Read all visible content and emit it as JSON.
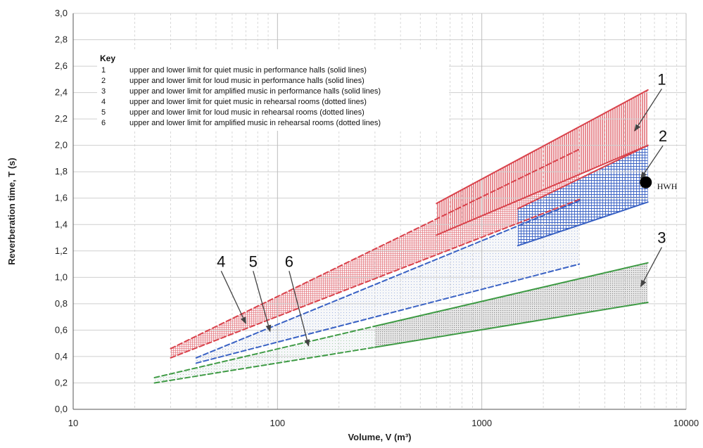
{
  "chart_data": {
    "type": "line",
    "title": "",
    "xlabel": "Volume, V (m³)",
    "ylabel": "Reverberation time, T (s)",
    "x_scale": "log",
    "xlim": [
      10,
      10000
    ],
    "ylim": [
      0,
      3.0
    ],
    "grid": true,
    "x_ticks": [
      {
        "value": 10,
        "label": "10"
      },
      {
        "value": 100,
        "label": "100"
      },
      {
        "value": 1000,
        "label": "1000"
      },
      {
        "value": 10000,
        "label": "10000"
      }
    ],
    "y_ticks": [
      {
        "value": 0.0,
        "label": "0,0"
      },
      {
        "value": 0.2,
        "label": "0,2"
      },
      {
        "value": 0.4,
        "label": "0,4"
      },
      {
        "value": 0.6,
        "label": "0,6"
      },
      {
        "value": 0.8,
        "label": "0,8"
      },
      {
        "value": 1.0,
        "label": "1,0"
      },
      {
        "value": 1.2,
        "label": "1,2"
      },
      {
        "value": 1.4,
        "label": "1,4"
      },
      {
        "value": 1.6,
        "label": "1,6"
      },
      {
        "value": 1.8,
        "label": "1,8"
      },
      {
        "value": 2.0,
        "label": "2,0"
      },
      {
        "value": 2.2,
        "label": "2,2"
      },
      {
        "value": 2.4,
        "label": "2,4"
      },
      {
        "value": 2.6,
        "label": "2,6"
      },
      {
        "value": 2.8,
        "label": "2,8"
      },
      {
        "value": 3.0,
        "label": "3,0"
      }
    ],
    "key": {
      "title": "Key",
      "entries": [
        {
          "number": "1",
          "text": "upper and lower limit for quiet music in performance halls (solid lines)"
        },
        {
          "number": "2",
          "text": "upper and lower limit for loud music in performance halls (solid lines)"
        },
        {
          "number": "3",
          "text": "upper and lower limit for amplified music in performance halls (solid lines)"
        },
        {
          "number": "4",
          "text": "upper and lower limit for quiet music in rehearsal rooms (dotted lines)"
        },
        {
          "number": "5",
          "text": "upper and lower limit for loud music in rehearsal rooms (dotted lines)"
        },
        {
          "number": "6",
          "text": "upper and lower limit for amplified music in rehearsal rooms (dotted lines)"
        }
      ]
    },
    "colors": {
      "red": "#d9434c",
      "blue": "#3a62c4",
      "green": "#3f9b45",
      "grid": "#cfcfcf"
    },
    "series": [
      {
        "id": "1-upper",
        "color": "#d9434c",
        "style": "solid",
        "x": [
          600,
          6500
        ],
        "y": [
          1.56,
          2.42
        ]
      },
      {
        "id": "1-lower",
        "color": "#d9434c",
        "style": "solid",
        "x": [
          600,
          6500
        ],
        "y": [
          1.32,
          2.0
        ]
      },
      {
        "id": "2-upper",
        "color": "#d9434c",
        "style": "solid",
        "x": [
          1500,
          6500
        ],
        "y": [
          1.52,
          2.0
        ]
      },
      {
        "id": "2-lower",
        "color": "#3a62c4",
        "style": "solid",
        "x": [
          1500,
          6500
        ],
        "y": [
          1.24,
          1.57
        ]
      },
      {
        "id": "3-upper",
        "color": "#3f9b45",
        "style": "solid",
        "x": [
          300,
          6500
        ],
        "y": [
          0.63,
          1.11
        ]
      },
      {
        "id": "3-lower",
        "color": "#3f9b45",
        "style": "solid",
        "x": [
          300,
          6500
        ],
        "y": [
          0.47,
          0.81
        ]
      },
      {
        "id": "4-upper",
        "color": "#d9434c",
        "style": "dashed",
        "x": [
          30,
          3000
        ],
        "y": [
          0.46,
          1.97
        ]
      },
      {
        "id": "4-lower",
        "color": "#d9434c",
        "style": "dashed",
        "x": [
          30,
          3000
        ],
        "y": [
          0.39,
          1.59
        ]
      },
      {
        "id": "5-upper",
        "color": "#3a62c4",
        "style": "dashed",
        "x": [
          40,
          3000
        ],
        "y": [
          0.39,
          1.58
        ]
      },
      {
        "id": "5-lower",
        "color": "#3a62c4",
        "style": "dashed",
        "x": [
          40,
          3000
        ],
        "y": [
          0.35,
          1.1
        ]
      },
      {
        "id": "6-upper",
        "color": "#3f9b45",
        "style": "dashed",
        "x": [
          25,
          300
        ],
        "y": [
          0.24,
          0.63
        ]
      },
      {
        "id": "6-lower",
        "color": "#3f9b45",
        "style": "dashed",
        "x": [
          25,
          300
        ],
        "y": [
          0.2,
          0.47
        ]
      }
    ],
    "regions": [
      {
        "id": "region-1",
        "color": "#d9434c",
        "pattern": "vertical-hatch",
        "x": [
          600,
          6500
        ],
        "upper_y": [
          1.56,
          2.42
        ],
        "lower_y": [
          1.32,
          2.0
        ]
      },
      {
        "id": "region-2",
        "color": "#3a62c4",
        "pattern": "grid-hatch",
        "x": [
          1500,
          6500
        ],
        "upper_y": [
          1.52,
          2.0
        ],
        "lower_y": [
          1.24,
          1.57
        ]
      },
      {
        "id": "region-3",
        "color": "#3f9b45",
        "pattern": "dots",
        "x": [
          300,
          6500
        ],
        "upper_y": [
          0.63,
          1.11
        ],
        "lower_y": [
          0.47,
          0.81
        ]
      },
      {
        "id": "region-4",
        "color": "#d9434c",
        "pattern": "fine-grid",
        "x": [
          30,
          3000
        ],
        "upper_y": [
          0.46,
          1.97
        ],
        "lower_y": [
          0.39,
          1.59
        ]
      },
      {
        "id": "region-5",
        "color": "#3a62c4",
        "pattern": "fine-dots",
        "x": [
          40,
          3000
        ],
        "upper_y": [
          0.39,
          1.58
        ],
        "lower_y": [
          0.35,
          1.1
        ]
      },
      {
        "id": "region-6",
        "color": "#3f9b45",
        "pattern": "fine-dots",
        "x": [
          25,
          300
        ],
        "upper_y": [
          0.24,
          0.63
        ],
        "lower_y": [
          0.2,
          0.47
        ]
      }
    ],
    "annotations": [
      {
        "label": "1",
        "text_at": [
          7600,
          2.46
        ],
        "arrow_to": [
          5600,
          2.11
        ]
      },
      {
        "label": "2",
        "text_at": [
          7700,
          2.03
        ],
        "arrow_to": [
          6000,
          1.75
        ]
      },
      {
        "label": "3",
        "text_at": [
          7600,
          1.26
        ],
        "arrow_to": [
          6000,
          0.93
        ]
      },
      {
        "label": "4",
        "text_at": [
          53,
          1.08
        ],
        "arrow_to": [
          70,
          0.65
        ]
      },
      {
        "label": "5",
        "text_at": [
          76,
          1.08
        ],
        "arrow_to": [
          92,
          0.59
        ]
      },
      {
        "label": "6",
        "text_at": [
          114,
          1.08
        ],
        "arrow_to": [
          142,
          0.48
        ]
      }
    ],
    "marker": {
      "label": "HWH",
      "x": 6350,
      "y": 1.72
    }
  }
}
